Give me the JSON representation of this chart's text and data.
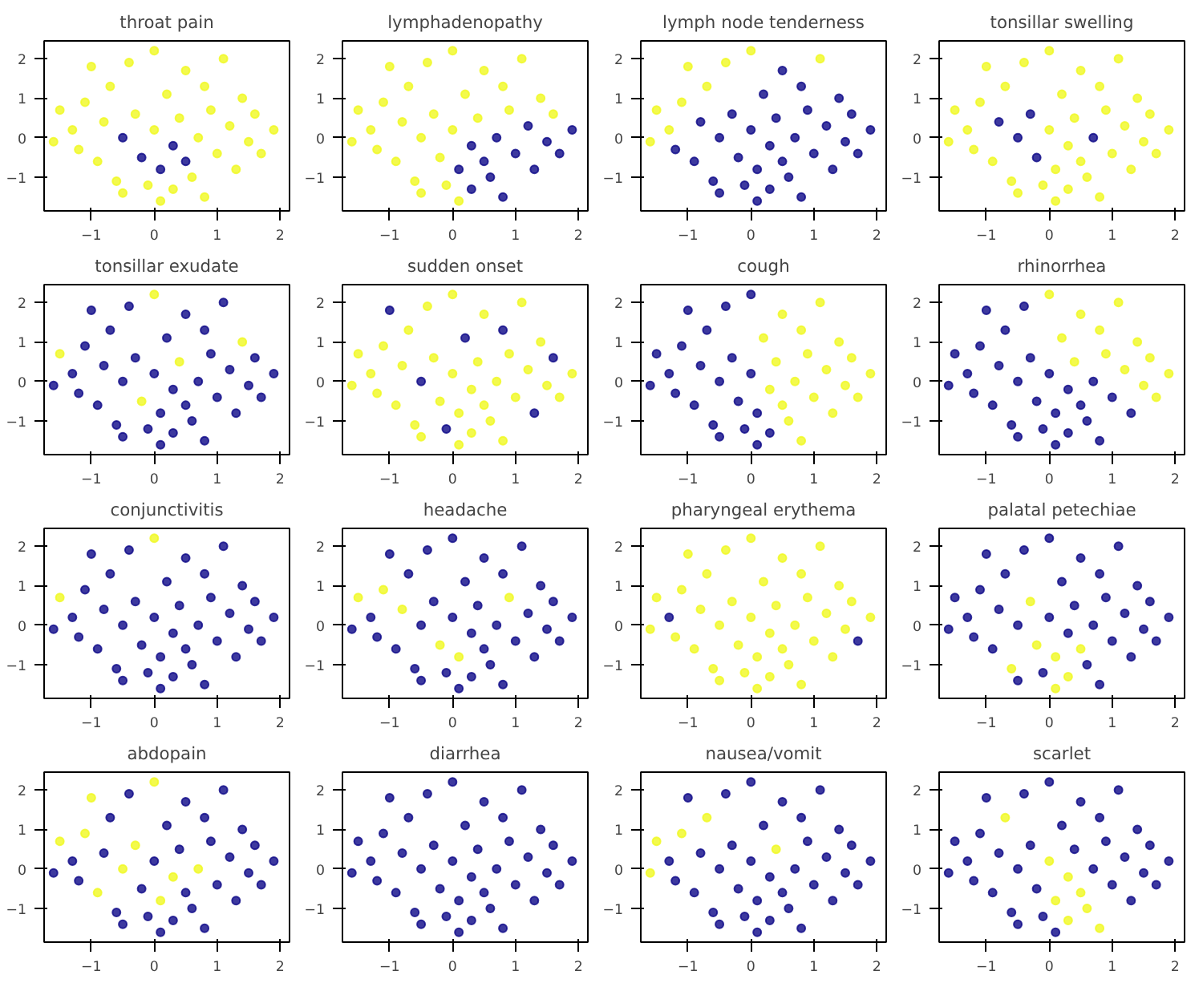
{
  "chart_data": [
    {
      "type": "scatter",
      "title": "throat pain",
      "xlim": [
        -1.75,
        2.15
      ],
      "ylim": [
        -1.85,
        2.45
      ],
      "xticks": [
        -1,
        0,
        1,
        2
      ],
      "yticks": [
        -1,
        0,
        1,
        2
      ],
      "marker": "circle",
      "x": [
        -1.5,
        -1.3,
        -1.2,
        -1.1,
        -1.0,
        -0.9,
        -0.8,
        -0.7,
        -0.6,
        -0.5,
        -0.5,
        -0.4,
        -0.3,
        -0.2,
        -0.1,
        0.0,
        0.0,
        0.1,
        0.1,
        0.2,
        0.3,
        0.3,
        0.4,
        0.5,
        0.5,
        0.6,
        0.7,
        0.8,
        0.8,
        0.9,
        1.0,
        1.1,
        1.2,
        1.3,
        1.4,
        1.5,
        1.6,
        1.7,
        1.9,
        -1.6
      ],
      "values": [
        0.7,
        0.2,
        -0.3,
        0.9,
        1.8,
        -0.6,
        0.4,
        1.3,
        -1.1,
        0.0,
        -1.4,
        1.9,
        0.6,
        -0.5,
        -1.2,
        2.2,
        0.2,
        -0.8,
        -1.6,
        1.1,
        -0.2,
        -1.3,
        0.5,
        1.7,
        -0.6,
        -1.0,
        0.0,
        1.3,
        -1.5,
        0.7,
        -0.4,
        2.0,
        0.3,
        -0.8,
        1.0,
        -0.1,
        0.6,
        -0.4,
        0.2,
        -0.1
      ],
      "colors": [
        "#f0f921",
        "#f0f921",
        "#f0f921",
        "#f0f921",
        "#f0f921",
        "#f0f921",
        "#f0f921",
        "#f0f921",
        "#f0f921",
        "#0d0887",
        "#f0f921",
        "#f0f921",
        "#f0f921",
        "#0d0887",
        "#f0f921",
        "#f0f921",
        "#f0f921",
        "#0d0887",
        "#f0f921",
        "#f0f921",
        "#0d0887",
        "#f0f921",
        "#f0f921",
        "#f0f921",
        "#0d0887",
        "#f0f921",
        "#f0f921",
        "#f0f921",
        "#f0f921",
        "#f0f921",
        "#f0f921",
        "#f0f921",
        "#f0f921",
        "#f0f921",
        "#f0f921",
        "#f0f921",
        "#f0f921",
        "#f0f921",
        "#f0f921",
        "#f0f921"
      ]
    },
    {
      "type": "scatter",
      "title": "lymphadenopathy",
      "xlim": [
        -1.75,
        2.15
      ],
      "ylim": [
        -1.85,
        2.45
      ],
      "xticks": [
        -1,
        0,
        1,
        2
      ],
      "yticks": [
        -1,
        0,
        1,
        2
      ],
      "marker": "circle",
      "x": [
        -1.5,
        -1.3,
        -1.2,
        -1.1,
        -1.0,
        -0.9,
        -0.8,
        -0.7,
        -0.6,
        -0.5,
        -0.5,
        -0.4,
        -0.3,
        -0.2,
        -0.1,
        0.0,
        0.0,
        0.1,
        0.1,
        0.2,
        0.3,
        0.3,
        0.4,
        0.5,
        0.5,
        0.6,
        0.7,
        0.8,
        0.8,
        0.9,
        1.0,
        1.1,
        1.2,
        1.3,
        1.4,
        1.5,
        1.6,
        1.7,
        1.9,
        -1.6
      ],
      "values": [
        0.7,
        0.2,
        -0.3,
        0.9,
        1.8,
        -0.6,
        0.4,
        1.3,
        -1.1,
        0.0,
        -1.4,
        1.9,
        0.6,
        -0.5,
        -1.2,
        2.2,
        0.2,
        -0.8,
        -1.6,
        1.1,
        -0.2,
        -1.3,
        0.5,
        1.7,
        -0.6,
        -1.0,
        0.0,
        1.3,
        -1.5,
        0.7,
        -0.4,
        2.0,
        0.3,
        -0.8,
        1.0,
        -0.1,
        0.6,
        -0.4,
        0.2,
        -0.1
      ],
      "colors": [
        "#f0f921",
        "#f0f921",
        "#f0f921",
        "#f0f921",
        "#f0f921",
        "#f0f921",
        "#f0f921",
        "#f0f921",
        "#f0f921",
        "#f0f921",
        "#f0f921",
        "#f0f921",
        "#f0f921",
        "#f0f921",
        "#f0f921",
        "#f0f921",
        "#f0f921",
        "#0d0887",
        "#f0f921",
        "#f0f921",
        "#0d0887",
        "#0d0887",
        "#f0f921",
        "#f0f921",
        "#0d0887",
        "#0d0887",
        "#0d0887",
        "#f0f921",
        "#0d0887",
        "#f0f921",
        "#0d0887",
        "#f0f921",
        "#0d0887",
        "#0d0887",
        "#f0f921",
        "#0d0887",
        "#f0f921",
        "#0d0887",
        "#0d0887",
        "#f0f921"
      ]
    },
    {
      "type": "scatter",
      "title": "lymph node tenderness",
      "xlim": [
        -1.75,
        2.15
      ],
      "ylim": [
        -1.85,
        2.45
      ],
      "xticks": [
        -1,
        0,
        1,
        2
      ],
      "yticks": [
        -1,
        0,
        1,
        2
      ],
      "marker": "circle",
      "x": [
        -1.5,
        -1.3,
        -1.2,
        -1.1,
        -1.0,
        -0.9,
        -0.8,
        -0.7,
        -0.6,
        -0.5,
        -0.5,
        -0.4,
        -0.3,
        -0.2,
        -0.1,
        0.0,
        0.0,
        0.1,
        0.1,
        0.2,
        0.3,
        0.3,
        0.4,
        0.5,
        0.5,
        0.6,
        0.7,
        0.8,
        0.8,
        0.9,
        1.0,
        1.1,
        1.2,
        1.3,
        1.4,
        1.5,
        1.6,
        1.7,
        1.9,
        -1.6
      ],
      "values": [
        0.7,
        0.2,
        -0.3,
        0.9,
        1.8,
        -0.6,
        0.4,
        1.3,
        -1.1,
        0.0,
        -1.4,
        1.9,
        0.6,
        -0.5,
        -1.2,
        2.2,
        0.2,
        -0.8,
        -1.6,
        1.1,
        -0.2,
        -1.3,
        0.5,
        1.7,
        -0.6,
        -1.0,
        0.0,
        1.3,
        -1.5,
        0.7,
        -0.4,
        2.0,
        0.3,
        -0.8,
        1.0,
        -0.1,
        0.6,
        -0.4,
        0.2,
        -0.1
      ],
      "colors": [
        "#f0f921",
        "#f0f921",
        "#0d0887",
        "#f0f921",
        "#f0f921",
        "#0d0887",
        "#0d0887",
        "#f0f921",
        "#0d0887",
        "#0d0887",
        "#0d0887",
        "#f0f921",
        "#0d0887",
        "#0d0887",
        "#0d0887",
        "#f0f921",
        "#0d0887",
        "#0d0887",
        "#0d0887",
        "#0d0887",
        "#0d0887",
        "#0d0887",
        "#0d0887",
        "#0d0887",
        "#0d0887",
        "#0d0887",
        "#0d0887",
        "#0d0887",
        "#0d0887",
        "#0d0887",
        "#0d0887",
        "#f0f921",
        "#0d0887",
        "#0d0887",
        "#0d0887",
        "#0d0887",
        "#0d0887",
        "#0d0887",
        "#0d0887",
        "#f0f921"
      ]
    },
    {
      "type": "scatter",
      "title": "tonsillar swelling",
      "xlim": [
        -1.75,
        2.15
      ],
      "ylim": [
        -1.85,
        2.45
      ],
      "xticks": [
        -1,
        0,
        1,
        2
      ],
      "yticks": [
        -1,
        0,
        1,
        2
      ],
      "marker": "circle",
      "x": [
        -1.5,
        -1.3,
        -1.2,
        -1.1,
        -1.0,
        -0.9,
        -0.8,
        -0.7,
        -0.6,
        -0.5,
        -0.5,
        -0.4,
        -0.3,
        -0.2,
        -0.1,
        0.0,
        0.0,
        0.1,
        0.1,
        0.2,
        0.3,
        0.3,
        0.4,
        0.5,
        0.5,
        0.6,
        0.7,
        0.8,
        0.8,
        0.9,
        1.0,
        1.1,
        1.2,
        1.3,
        1.4,
        1.5,
        1.6,
        1.7,
        1.9,
        -1.6
      ],
      "values": [
        0.7,
        0.2,
        -0.3,
        0.9,
        1.8,
        -0.6,
        0.4,
        1.3,
        -1.1,
        0.0,
        -1.4,
        1.9,
        0.6,
        -0.5,
        -1.2,
        2.2,
        0.2,
        -0.8,
        -1.6,
        1.1,
        -0.2,
        -1.3,
        0.5,
        1.7,
        -0.6,
        -1.0,
        0.0,
        1.3,
        -1.5,
        0.7,
        -0.4,
        2.0,
        0.3,
        -0.8,
        1.0,
        -0.1,
        0.6,
        -0.4,
        0.2,
        -0.1
      ],
      "colors": [
        "#f0f921",
        "#f0f921",
        "#f0f921",
        "#f0f921",
        "#f0f921",
        "#f0f921",
        "#0d0887",
        "#f0f921",
        "#f0f921",
        "#0d0887",
        "#f0f921",
        "#f0f921",
        "#0d0887",
        "#0d0887",
        "#f0f921",
        "#f0f921",
        "#f0f921",
        "#f0f921",
        "#f0f921",
        "#f0f921",
        "#f0f921",
        "#f0f921",
        "#f0f921",
        "#f0f921",
        "#f0f921",
        "#f0f921",
        "#0d0887",
        "#f0f921",
        "#f0f921",
        "#f0f921",
        "#f0f921",
        "#f0f921",
        "#f0f921",
        "#f0f921",
        "#f0f921",
        "#f0f921",
        "#f0f921",
        "#f0f921",
        "#f0f921",
        "#f0f921"
      ]
    },
    {
      "type": "scatter",
      "title": "tonsillar exudate",
      "xlim": [
        -1.75,
        2.15
      ],
      "ylim": [
        -1.85,
        2.45
      ],
      "xticks": [
        -1,
        0,
        1,
        2
      ],
      "yticks": [
        -1,
        0,
        1,
        2
      ],
      "marker": "circle",
      "x": [
        -1.5,
        -1.3,
        -1.2,
        -1.1,
        -1.0,
        -0.9,
        -0.8,
        -0.7,
        -0.6,
        -0.5,
        -0.5,
        -0.4,
        -0.3,
        -0.2,
        -0.1,
        0.0,
        0.0,
        0.1,
        0.1,
        0.2,
        0.3,
        0.3,
        0.4,
        0.5,
        0.5,
        0.6,
        0.7,
        0.8,
        0.8,
        0.9,
        1.0,
        1.1,
        1.2,
        1.3,
        1.4,
        1.5,
        1.6,
        1.7,
        1.9,
        -1.6
      ],
      "values": [
        0.7,
        0.2,
        -0.3,
        0.9,
        1.8,
        -0.6,
        0.4,
        1.3,
        -1.1,
        0.0,
        -1.4,
        1.9,
        0.6,
        -0.5,
        -1.2,
        2.2,
        0.2,
        -0.8,
        -1.6,
        1.1,
        -0.2,
        -1.3,
        0.5,
        1.7,
        -0.6,
        -1.0,
        0.0,
        1.3,
        -1.5,
        0.7,
        -0.4,
        2.0,
        0.3,
        -0.8,
        1.0,
        -0.1,
        0.6,
        -0.4,
        0.2,
        -0.1
      ],
      "colors": [
        "#f0f921",
        "#0d0887",
        "#0d0887",
        "#0d0887",
        "#0d0887",
        "#0d0887",
        "#0d0887",
        "#0d0887",
        "#0d0887",
        "#0d0887",
        "#0d0887",
        "#0d0887",
        "#0d0887",
        "#f0f921",
        "#0d0887",
        "#f0f921",
        "#0d0887",
        "#0d0887",
        "#0d0887",
        "#0d0887",
        "#0d0887",
        "#0d0887",
        "#f0f921",
        "#0d0887",
        "#0d0887",
        "#0d0887",
        "#0d0887",
        "#0d0887",
        "#0d0887",
        "#0d0887",
        "#0d0887",
        "#0d0887",
        "#0d0887",
        "#0d0887",
        "#f0f921",
        "#0d0887",
        "#0d0887",
        "#0d0887",
        "#0d0887",
        "#0d0887"
      ]
    },
    {
      "type": "scatter",
      "title": "sudden onset",
      "xlim": [
        -1.75,
        2.15
      ],
      "ylim": [
        -1.85,
        2.45
      ],
      "xticks": [
        -1,
        0,
        1,
        2
      ],
      "yticks": [
        -1,
        0,
        1,
        2
      ],
      "marker": "circle",
      "x": [
        -1.5,
        -1.3,
        -1.2,
        -1.1,
        -1.0,
        -0.9,
        -0.8,
        -0.7,
        -0.6,
        -0.5,
        -0.5,
        -0.4,
        -0.3,
        -0.2,
        -0.1,
        0.0,
        0.0,
        0.1,
        0.1,
        0.2,
        0.3,
        0.3,
        0.4,
        0.5,
        0.5,
        0.6,
        0.7,
        0.8,
        0.8,
        0.9,
        1.0,
        1.1,
        1.2,
        1.3,
        1.4,
        1.5,
        1.6,
        1.7,
        1.9,
        -1.6
      ],
      "values": [
        0.7,
        0.2,
        -0.3,
        0.9,
        1.8,
        -0.6,
        0.4,
        1.3,
        -1.1,
        0.0,
        -1.4,
        1.9,
        0.6,
        -0.5,
        -1.2,
        2.2,
        0.2,
        -0.8,
        -1.6,
        1.1,
        -0.2,
        -1.3,
        0.5,
        1.7,
        -0.6,
        -1.0,
        0.0,
        1.3,
        -1.5,
        0.7,
        -0.4,
        2.0,
        0.3,
        -0.8,
        1.0,
        -0.1,
        0.6,
        -0.4,
        0.2,
        -0.1
      ],
      "colors": [
        "#f0f921",
        "#f0f921",
        "#f0f921",
        "#f0f921",
        "#0d0887",
        "#f0f921",
        "#f0f921",
        "#f0f921",
        "#f0f921",
        "#0d0887",
        "#f0f921",
        "#f0f921",
        "#f0f921",
        "#f0f921",
        "#0d0887",
        "#f0f921",
        "#f0f921",
        "#f0f921",
        "#f0f921",
        "#0d0887",
        "#f0f921",
        "#f0f921",
        "#f0f921",
        "#f0f921",
        "#f0f921",
        "#f0f921",
        "#f0f921",
        "#0d0887",
        "#f0f921",
        "#f0f921",
        "#f0f921",
        "#f0f921",
        "#f0f921",
        "#0d0887",
        "#f0f921",
        "#f0f921",
        "#0d0887",
        "#f0f921",
        "#f0f921",
        "#f0f921"
      ]
    },
    {
      "type": "scatter",
      "title": "cough",
      "xlim": [
        -1.75,
        2.15
      ],
      "ylim": [
        -1.85,
        2.45
      ],
      "xticks": [
        -1,
        0,
        1,
        2
      ],
      "yticks": [
        -1,
        0,
        1,
        2
      ],
      "marker": "circle",
      "x": [
        -1.5,
        -1.3,
        -1.2,
        -1.1,
        -1.0,
        -0.9,
        -0.8,
        -0.7,
        -0.6,
        -0.5,
        -0.5,
        -0.4,
        -0.3,
        -0.2,
        -0.1,
        0.0,
        0.0,
        0.1,
        0.1,
        0.2,
        0.3,
        0.3,
        0.4,
        0.5,
        0.5,
        0.6,
        0.7,
        0.8,
        0.8,
        0.9,
        1.0,
        1.1,
        1.2,
        1.3,
        1.4,
        1.5,
        1.6,
        1.7,
        1.9,
        -1.6
      ],
      "values": [
        0.7,
        0.2,
        -0.3,
        0.9,
        1.8,
        -0.6,
        0.4,
        1.3,
        -1.1,
        0.0,
        -1.4,
        1.9,
        0.6,
        -0.5,
        -1.2,
        2.2,
        0.2,
        -0.8,
        -1.6,
        1.1,
        -0.2,
        -1.3,
        0.5,
        1.7,
        -0.6,
        -1.0,
        0.0,
        1.3,
        -1.5,
        0.7,
        -0.4,
        2.0,
        0.3,
        -0.8,
        1.0,
        -0.1,
        0.6,
        -0.4,
        0.2,
        -0.1
      ],
      "colors": [
        "#0d0887",
        "#0d0887",
        "#0d0887",
        "#0d0887",
        "#0d0887",
        "#0d0887",
        "#0d0887",
        "#0d0887",
        "#0d0887",
        "#0d0887",
        "#0d0887",
        "#0d0887",
        "#0d0887",
        "#0d0887",
        "#0d0887",
        "#0d0887",
        "#0d0887",
        "#0d0887",
        "#0d0887",
        "#f0f921",
        "#f0f921",
        "#0d0887",
        "#f0f921",
        "#f0f921",
        "#f0f921",
        "#f0f921",
        "#f0f921",
        "#f0f921",
        "#f0f921",
        "#f0f921",
        "#f0f921",
        "#f0f921",
        "#f0f921",
        "#f0f921",
        "#f0f921",
        "#f0f921",
        "#f0f921",
        "#f0f921",
        "#f0f921",
        "#0d0887"
      ]
    },
    {
      "type": "scatter",
      "title": "rhinorrhea",
      "xlim": [
        -1.75,
        2.15
      ],
      "ylim": [
        -1.85,
        2.45
      ],
      "xticks": [
        -1,
        0,
        1,
        2
      ],
      "yticks": [
        -1,
        0,
        1,
        2
      ],
      "marker": "circle",
      "x": [
        -1.5,
        -1.3,
        -1.2,
        -1.1,
        -1.0,
        -0.9,
        -0.8,
        -0.7,
        -0.6,
        -0.5,
        -0.5,
        -0.4,
        -0.3,
        -0.2,
        -0.1,
        0.0,
        0.0,
        0.1,
        0.1,
        0.2,
        0.3,
        0.3,
        0.4,
        0.5,
        0.5,
        0.6,
        0.7,
        0.8,
        0.8,
        0.9,
        1.0,
        1.1,
        1.2,
        1.3,
        1.4,
        1.5,
        1.6,
        1.7,
        1.9,
        -1.6
      ],
      "values": [
        0.7,
        0.2,
        -0.3,
        0.9,
        1.8,
        -0.6,
        0.4,
        1.3,
        -1.1,
        0.0,
        -1.4,
        1.9,
        0.6,
        -0.5,
        -1.2,
        2.2,
        0.2,
        -0.8,
        -1.6,
        1.1,
        -0.2,
        -1.3,
        0.5,
        1.7,
        -0.6,
        -1.0,
        0.0,
        1.3,
        -1.5,
        0.7,
        -0.4,
        2.0,
        0.3,
        -0.8,
        1.0,
        -0.1,
        0.6,
        -0.4,
        0.2,
        -0.1
      ],
      "colors": [
        "#0d0887",
        "#0d0887",
        "#0d0887",
        "#0d0887",
        "#0d0887",
        "#0d0887",
        "#0d0887",
        "#0d0887",
        "#0d0887",
        "#0d0887",
        "#0d0887",
        "#0d0887",
        "#0d0887",
        "#0d0887",
        "#0d0887",
        "#f0f921",
        "#0d0887",
        "#0d0887",
        "#0d0887",
        "#f0f921",
        "#0d0887",
        "#0d0887",
        "#f0f921",
        "#f0f921",
        "#0d0887",
        "#0d0887",
        "#0d0887",
        "#f0f921",
        "#0d0887",
        "#f0f921",
        "#0d0887",
        "#f0f921",
        "#f0f921",
        "#0d0887",
        "#f0f921",
        "#f0f921",
        "#f0f921",
        "#f0f921",
        "#f0f921",
        "#0d0887"
      ]
    },
    {
      "type": "scatter",
      "title": "conjunctivitis",
      "xlim": [
        -1.75,
        2.15
      ],
      "ylim": [
        -1.85,
        2.45
      ],
      "xticks": [
        -1,
        0,
        1,
        2
      ],
      "yticks": [
        -1,
        0,
        1,
        2
      ],
      "marker": "circle",
      "x": [
        -1.5,
        -1.3,
        -1.2,
        -1.1,
        -1.0,
        -0.9,
        -0.8,
        -0.7,
        -0.6,
        -0.5,
        -0.5,
        -0.4,
        -0.3,
        -0.2,
        -0.1,
        0.0,
        0.0,
        0.1,
        0.1,
        0.2,
        0.3,
        0.3,
        0.4,
        0.5,
        0.5,
        0.6,
        0.7,
        0.8,
        0.8,
        0.9,
        1.0,
        1.1,
        1.2,
        1.3,
        1.4,
        1.5,
        1.6,
        1.7,
        1.9,
        -1.6
      ],
      "values": [
        0.7,
        0.2,
        -0.3,
        0.9,
        1.8,
        -0.6,
        0.4,
        1.3,
        -1.1,
        0.0,
        -1.4,
        1.9,
        0.6,
        -0.5,
        -1.2,
        2.2,
        0.2,
        -0.8,
        -1.6,
        1.1,
        -0.2,
        -1.3,
        0.5,
        1.7,
        -0.6,
        -1.0,
        0.0,
        1.3,
        -1.5,
        0.7,
        -0.4,
        2.0,
        0.3,
        -0.8,
        1.0,
        -0.1,
        0.6,
        -0.4,
        0.2,
        -0.1
      ],
      "colors": [
        "#f0f921",
        "#0d0887",
        "#0d0887",
        "#0d0887",
        "#0d0887",
        "#0d0887",
        "#0d0887",
        "#0d0887",
        "#0d0887",
        "#0d0887",
        "#0d0887",
        "#0d0887",
        "#0d0887",
        "#0d0887",
        "#0d0887",
        "#f0f921",
        "#0d0887",
        "#0d0887",
        "#0d0887",
        "#0d0887",
        "#0d0887",
        "#0d0887",
        "#0d0887",
        "#0d0887",
        "#0d0887",
        "#0d0887",
        "#0d0887",
        "#0d0887",
        "#0d0887",
        "#0d0887",
        "#0d0887",
        "#0d0887",
        "#0d0887",
        "#0d0887",
        "#0d0887",
        "#0d0887",
        "#0d0887",
        "#0d0887",
        "#0d0887",
        "#0d0887"
      ]
    },
    {
      "type": "scatter",
      "title": "headache",
      "xlim": [
        -1.75,
        2.15
      ],
      "ylim": [
        -1.85,
        2.45
      ],
      "xticks": [
        -1,
        0,
        1,
        2
      ],
      "yticks": [
        -1,
        0,
        1,
        2
      ],
      "marker": "circle",
      "x": [
        -1.5,
        -1.3,
        -1.2,
        -1.1,
        -1.0,
        -0.9,
        -0.8,
        -0.7,
        -0.6,
        -0.5,
        -0.5,
        -0.4,
        -0.3,
        -0.2,
        -0.1,
        0.0,
        0.0,
        0.1,
        0.1,
        0.2,
        0.3,
        0.3,
        0.4,
        0.5,
        0.5,
        0.6,
        0.7,
        0.8,
        0.8,
        0.9,
        1.0,
        1.1,
        1.2,
        1.3,
        1.4,
        1.5,
        1.6,
        1.7,
        1.9,
        -1.6
      ],
      "values": [
        0.7,
        0.2,
        -0.3,
        0.9,
        1.8,
        -0.6,
        0.4,
        1.3,
        -1.1,
        0.0,
        -1.4,
        1.9,
        0.6,
        -0.5,
        -1.2,
        2.2,
        0.2,
        -0.8,
        -1.6,
        1.1,
        -0.2,
        -1.3,
        0.5,
        1.7,
        -0.6,
        -1.0,
        0.0,
        1.3,
        -1.5,
        0.7,
        -0.4,
        2.0,
        0.3,
        -0.8,
        1.0,
        -0.1,
        0.6,
        -0.4,
        0.2,
        -0.1
      ],
      "colors": [
        "#f0f921",
        "#0d0887",
        "#0d0887",
        "#f0f921",
        "#0d0887",
        "#0d0887",
        "#f0f921",
        "#0d0887",
        "#0d0887",
        "#0d0887",
        "#0d0887",
        "#0d0887",
        "#0d0887",
        "#f0f921",
        "#0d0887",
        "#0d0887",
        "#0d0887",
        "#f0f921",
        "#0d0887",
        "#0d0887",
        "#0d0887",
        "#0d0887",
        "#0d0887",
        "#0d0887",
        "#0d0887",
        "#0d0887",
        "#0d0887",
        "#0d0887",
        "#0d0887",
        "#f0f921",
        "#0d0887",
        "#0d0887",
        "#0d0887",
        "#0d0887",
        "#0d0887",
        "#0d0887",
        "#0d0887",
        "#0d0887",
        "#0d0887",
        "#0d0887"
      ]
    },
    {
      "type": "scatter",
      "title": "pharyngeal erythema",
      "xlim": [
        -1.75,
        2.15
      ],
      "ylim": [
        -1.85,
        2.45
      ],
      "xticks": [
        -1,
        0,
        1,
        2
      ],
      "yticks": [
        -1,
        0,
        1,
        2
      ],
      "marker": "circle",
      "x": [
        -1.5,
        -1.3,
        -1.2,
        -1.1,
        -1.0,
        -0.9,
        -0.8,
        -0.7,
        -0.6,
        -0.5,
        -0.5,
        -0.4,
        -0.3,
        -0.2,
        -0.1,
        0.0,
        0.0,
        0.1,
        0.1,
        0.2,
        0.3,
        0.3,
        0.4,
        0.5,
        0.5,
        0.6,
        0.7,
        0.8,
        0.8,
        0.9,
        1.0,
        1.1,
        1.2,
        1.3,
        1.4,
        1.5,
        1.6,
        1.7,
        1.9,
        -1.6
      ],
      "values": [
        0.7,
        0.2,
        -0.3,
        0.9,
        1.8,
        -0.6,
        0.4,
        1.3,
        -1.1,
        0.0,
        -1.4,
        1.9,
        0.6,
        -0.5,
        -1.2,
        2.2,
        0.2,
        -0.8,
        -1.6,
        1.1,
        -0.2,
        -1.3,
        0.5,
        1.7,
        -0.6,
        -1.0,
        0.0,
        1.3,
        -1.5,
        0.7,
        -0.4,
        2.0,
        0.3,
        -0.8,
        1.0,
        -0.1,
        0.6,
        -0.4,
        0.2,
        -0.1
      ],
      "colors": [
        "#f0f921",
        "#0d0887",
        "#f0f921",
        "#f0f921",
        "#f0f921",
        "#f0f921",
        "#f0f921",
        "#f0f921",
        "#f0f921",
        "#f0f921",
        "#f0f921",
        "#f0f921",
        "#f0f921",
        "#f0f921",
        "#f0f921",
        "#f0f921",
        "#f0f921",
        "#f0f921",
        "#f0f921",
        "#f0f921",
        "#f0f921",
        "#f0f921",
        "#f0f921",
        "#f0f921",
        "#f0f921",
        "#f0f921",
        "#f0f921",
        "#f0f921",
        "#f0f921",
        "#f0f921",
        "#f0f921",
        "#f0f921",
        "#f0f921",
        "#f0f921",
        "#f0f921",
        "#f0f921",
        "#f0f921",
        "#0d0887",
        "#f0f921",
        "#f0f921"
      ]
    },
    {
      "type": "scatter",
      "title": "palatal petechiae",
      "xlim": [
        -1.75,
        2.15
      ],
      "ylim": [
        -1.85,
        2.45
      ],
      "xticks": [
        -1,
        0,
        1,
        2
      ],
      "yticks": [
        -1,
        0,
        1,
        2
      ],
      "marker": "circle",
      "x": [
        -1.5,
        -1.3,
        -1.2,
        -1.1,
        -1.0,
        -0.9,
        -0.8,
        -0.7,
        -0.6,
        -0.5,
        -0.5,
        -0.4,
        -0.3,
        -0.2,
        -0.1,
        0.0,
        0.0,
        0.1,
        0.1,
        0.2,
        0.3,
        0.3,
        0.4,
        0.5,
        0.5,
        0.6,
        0.7,
        0.8,
        0.8,
        0.9,
        1.0,
        1.1,
        1.2,
        1.3,
        1.4,
        1.5,
        1.6,
        1.7,
        1.9,
        -1.6
      ],
      "values": [
        0.7,
        0.2,
        -0.3,
        0.9,
        1.8,
        -0.6,
        0.4,
        1.3,
        -1.1,
        0.0,
        -1.4,
        1.9,
        0.6,
        -0.5,
        -1.2,
        2.2,
        0.2,
        -0.8,
        -1.6,
        1.1,
        -0.2,
        -1.3,
        0.5,
        1.7,
        -0.6,
        -1.0,
        0.0,
        1.3,
        -1.5,
        0.7,
        -0.4,
        2.0,
        0.3,
        -0.8,
        1.0,
        -0.1,
        0.6,
        -0.4,
        0.2,
        -0.1
      ],
      "colors": [
        "#0d0887",
        "#0d0887",
        "#0d0887",
        "#0d0887",
        "#0d0887",
        "#0d0887",
        "#0d0887",
        "#0d0887",
        "#f0f921",
        "#0d0887",
        "#0d0887",
        "#0d0887",
        "#f0f921",
        "#f0f921",
        "#0d0887",
        "#0d0887",
        "#0d0887",
        "#f0f921",
        "#f0f921",
        "#0d0887",
        "#0d0887",
        "#f0f921",
        "#0d0887",
        "#0d0887",
        "#f0f921",
        "#0d0887",
        "#0d0887",
        "#0d0887",
        "#0d0887",
        "#0d0887",
        "#0d0887",
        "#0d0887",
        "#0d0887",
        "#0d0887",
        "#0d0887",
        "#0d0887",
        "#0d0887",
        "#0d0887",
        "#0d0887",
        "#0d0887"
      ]
    },
    {
      "type": "scatter",
      "title": "abdopain",
      "xlim": [
        -1.75,
        2.15
      ],
      "ylim": [
        -1.85,
        2.45
      ],
      "xticks": [
        -1,
        0,
        1,
        2
      ],
      "yticks": [
        -1,
        0,
        1,
        2
      ],
      "marker": "circle",
      "x": [
        -1.5,
        -1.3,
        -1.2,
        -1.1,
        -1.0,
        -0.9,
        -0.8,
        -0.7,
        -0.6,
        -0.5,
        -0.5,
        -0.4,
        -0.3,
        -0.2,
        -0.1,
        0.0,
        0.0,
        0.1,
        0.1,
        0.2,
        0.3,
        0.3,
        0.4,
        0.5,
        0.5,
        0.6,
        0.7,
        0.8,
        0.8,
        0.9,
        1.0,
        1.1,
        1.2,
        1.3,
        1.4,
        1.5,
        1.6,
        1.7,
        1.9,
        -1.6
      ],
      "values": [
        0.7,
        0.2,
        -0.3,
        0.9,
        1.8,
        -0.6,
        0.4,
        1.3,
        -1.1,
        0.0,
        -1.4,
        1.9,
        0.6,
        -0.5,
        -1.2,
        2.2,
        0.2,
        -0.8,
        -1.6,
        1.1,
        -0.2,
        -1.3,
        0.5,
        1.7,
        -0.6,
        -1.0,
        0.0,
        1.3,
        -1.5,
        0.7,
        -0.4,
        2.0,
        0.3,
        -0.8,
        1.0,
        -0.1,
        0.6,
        -0.4,
        0.2,
        -0.1
      ],
      "colors": [
        "#f0f921",
        "#0d0887",
        "#0d0887",
        "#f0f921",
        "#f0f921",
        "#f0f921",
        "#0d0887",
        "#0d0887",
        "#0d0887",
        "#f0f921",
        "#0d0887",
        "#0d0887",
        "#f0f921",
        "#0d0887",
        "#0d0887",
        "#f0f921",
        "#0d0887",
        "#f0f921",
        "#0d0887",
        "#0d0887",
        "#f0f921",
        "#0d0887",
        "#0d0887",
        "#0d0887",
        "#0d0887",
        "#0d0887",
        "#f0f921",
        "#0d0887",
        "#0d0887",
        "#0d0887",
        "#0d0887",
        "#0d0887",
        "#0d0887",
        "#0d0887",
        "#0d0887",
        "#0d0887",
        "#0d0887",
        "#0d0887",
        "#0d0887",
        "#0d0887"
      ]
    },
    {
      "type": "scatter",
      "title": "diarrhea",
      "xlim": [
        -1.75,
        2.15
      ],
      "ylim": [
        -1.85,
        2.45
      ],
      "xticks": [
        -1,
        0,
        1,
        2
      ],
      "yticks": [
        -1,
        0,
        1,
        2
      ],
      "marker": "circle",
      "x": [
        -1.5,
        -1.3,
        -1.2,
        -1.1,
        -1.0,
        -0.9,
        -0.8,
        -0.7,
        -0.6,
        -0.5,
        -0.5,
        -0.4,
        -0.3,
        -0.2,
        -0.1,
        0.0,
        0.0,
        0.1,
        0.1,
        0.2,
        0.3,
        0.3,
        0.4,
        0.5,
        0.5,
        0.6,
        0.7,
        0.8,
        0.8,
        0.9,
        1.0,
        1.1,
        1.2,
        1.3,
        1.4,
        1.5,
        1.6,
        1.7,
        1.9,
        -1.6
      ],
      "values": [
        0.7,
        0.2,
        -0.3,
        0.9,
        1.8,
        -0.6,
        0.4,
        1.3,
        -1.1,
        0.0,
        -1.4,
        1.9,
        0.6,
        -0.5,
        -1.2,
        2.2,
        0.2,
        -0.8,
        -1.6,
        1.1,
        -0.2,
        -1.3,
        0.5,
        1.7,
        -0.6,
        -1.0,
        0.0,
        1.3,
        -1.5,
        0.7,
        -0.4,
        2.0,
        0.3,
        -0.8,
        1.0,
        -0.1,
        0.6,
        -0.4,
        0.2,
        -0.1
      ],
      "colors": [
        "#0d0887",
        "#0d0887",
        "#0d0887",
        "#0d0887",
        "#0d0887",
        "#0d0887",
        "#0d0887",
        "#0d0887",
        "#0d0887",
        "#0d0887",
        "#0d0887",
        "#0d0887",
        "#0d0887",
        "#0d0887",
        "#0d0887",
        "#0d0887",
        "#0d0887",
        "#0d0887",
        "#0d0887",
        "#0d0887",
        "#0d0887",
        "#0d0887",
        "#0d0887",
        "#0d0887",
        "#0d0887",
        "#0d0887",
        "#0d0887",
        "#0d0887",
        "#0d0887",
        "#0d0887",
        "#0d0887",
        "#0d0887",
        "#0d0887",
        "#0d0887",
        "#0d0887",
        "#0d0887",
        "#0d0887",
        "#0d0887",
        "#0d0887",
        "#0d0887"
      ]
    },
    {
      "type": "scatter",
      "title": "nausea/vomit",
      "xlim": [
        -1.75,
        2.15
      ],
      "ylim": [
        -1.85,
        2.45
      ],
      "xticks": [
        -1,
        0,
        1,
        2
      ],
      "yticks": [
        -1,
        0,
        1,
        2
      ],
      "marker": "circle",
      "x": [
        -1.5,
        -1.3,
        -1.2,
        -1.1,
        -1.0,
        -0.9,
        -0.8,
        -0.7,
        -0.6,
        -0.5,
        -0.5,
        -0.4,
        -0.3,
        -0.2,
        -0.1,
        0.0,
        0.0,
        0.1,
        0.1,
        0.2,
        0.3,
        0.3,
        0.4,
        0.5,
        0.5,
        0.6,
        0.7,
        0.8,
        0.8,
        0.9,
        1.0,
        1.1,
        1.2,
        1.3,
        1.4,
        1.5,
        1.6,
        1.7,
        1.9,
        -1.6
      ],
      "values": [
        0.7,
        0.2,
        -0.3,
        0.9,
        1.8,
        -0.6,
        0.4,
        1.3,
        -1.1,
        0.0,
        -1.4,
        1.9,
        0.6,
        -0.5,
        -1.2,
        2.2,
        0.2,
        -0.8,
        -1.6,
        1.1,
        -0.2,
        -1.3,
        0.5,
        1.7,
        -0.6,
        -1.0,
        0.0,
        1.3,
        -1.5,
        0.7,
        -0.4,
        2.0,
        0.3,
        -0.8,
        1.0,
        -0.1,
        0.6,
        -0.4,
        0.2,
        -0.1
      ],
      "colors": [
        "#f0f921",
        "#0d0887",
        "#0d0887",
        "#f0f921",
        "#0d0887",
        "#0d0887",
        "#0d0887",
        "#f0f921",
        "#0d0887",
        "#0d0887",
        "#0d0887",
        "#0d0887",
        "#0d0887",
        "#0d0887",
        "#0d0887",
        "#0d0887",
        "#0d0887",
        "#0d0887",
        "#0d0887",
        "#0d0887",
        "#0d0887",
        "#0d0887",
        "#f0f921",
        "#0d0887",
        "#0d0887",
        "#0d0887",
        "#0d0887",
        "#0d0887",
        "#0d0887",
        "#0d0887",
        "#0d0887",
        "#0d0887",
        "#0d0887",
        "#0d0887",
        "#0d0887",
        "#0d0887",
        "#0d0887",
        "#0d0887",
        "#0d0887",
        "#f0f921"
      ]
    },
    {
      "type": "scatter",
      "title": "scarlet",
      "xlim": [
        -1.75,
        2.15
      ],
      "ylim": [
        -1.85,
        2.45
      ],
      "xticks": [
        -1,
        0,
        1,
        2
      ],
      "yticks": [
        -1,
        0,
        1,
        2
      ],
      "marker": "circle",
      "x": [
        -1.5,
        -1.3,
        -1.2,
        -1.1,
        -1.0,
        -0.9,
        -0.8,
        -0.7,
        -0.6,
        -0.5,
        -0.5,
        -0.4,
        -0.3,
        -0.2,
        -0.1,
        0.0,
        0.0,
        0.1,
        0.1,
        0.2,
        0.3,
        0.3,
        0.4,
        0.5,
        0.5,
        0.6,
        0.7,
        0.8,
        0.8,
        0.9,
        1.0,
        1.1,
        1.2,
        1.3,
        1.4,
        1.5,
        1.6,
        1.7,
        1.9,
        -1.6
      ],
      "values": [
        0.7,
        0.2,
        -0.3,
        0.9,
        1.8,
        -0.6,
        0.4,
        1.3,
        -1.1,
        0.0,
        -1.4,
        1.9,
        0.6,
        -0.5,
        -1.2,
        2.2,
        0.2,
        -0.8,
        -1.6,
        1.1,
        -0.2,
        -1.3,
        0.5,
        1.7,
        -0.6,
        -1.0,
        0.0,
        1.3,
        -1.5,
        0.7,
        -0.4,
        2.0,
        0.3,
        -0.8,
        1.0,
        -0.1,
        0.6,
        -0.4,
        0.2,
        -0.1
      ],
      "colors": [
        "#0d0887",
        "#0d0887",
        "#0d0887",
        "#0d0887",
        "#0d0887",
        "#0d0887",
        "#0d0887",
        "#f0f921",
        "#0d0887",
        "#0d0887",
        "#0d0887",
        "#0d0887",
        "#0d0887",
        "#0d0887",
        "#0d0887",
        "#0d0887",
        "#f0f921",
        "#f0f921",
        "#0d0887",
        "#0d0887",
        "#f0f921",
        "#f0f921",
        "#0d0887",
        "#0d0887",
        "#f0f921",
        "#f0f921",
        "#0d0887",
        "#0d0887",
        "#f0f921",
        "#0d0887",
        "#0d0887",
        "#0d0887",
        "#0d0887",
        "#0d0887",
        "#0d0887",
        "#0d0887",
        "#0d0887",
        "#0d0887",
        "#0d0887",
        "#0d0887"
      ]
    }
  ]
}
